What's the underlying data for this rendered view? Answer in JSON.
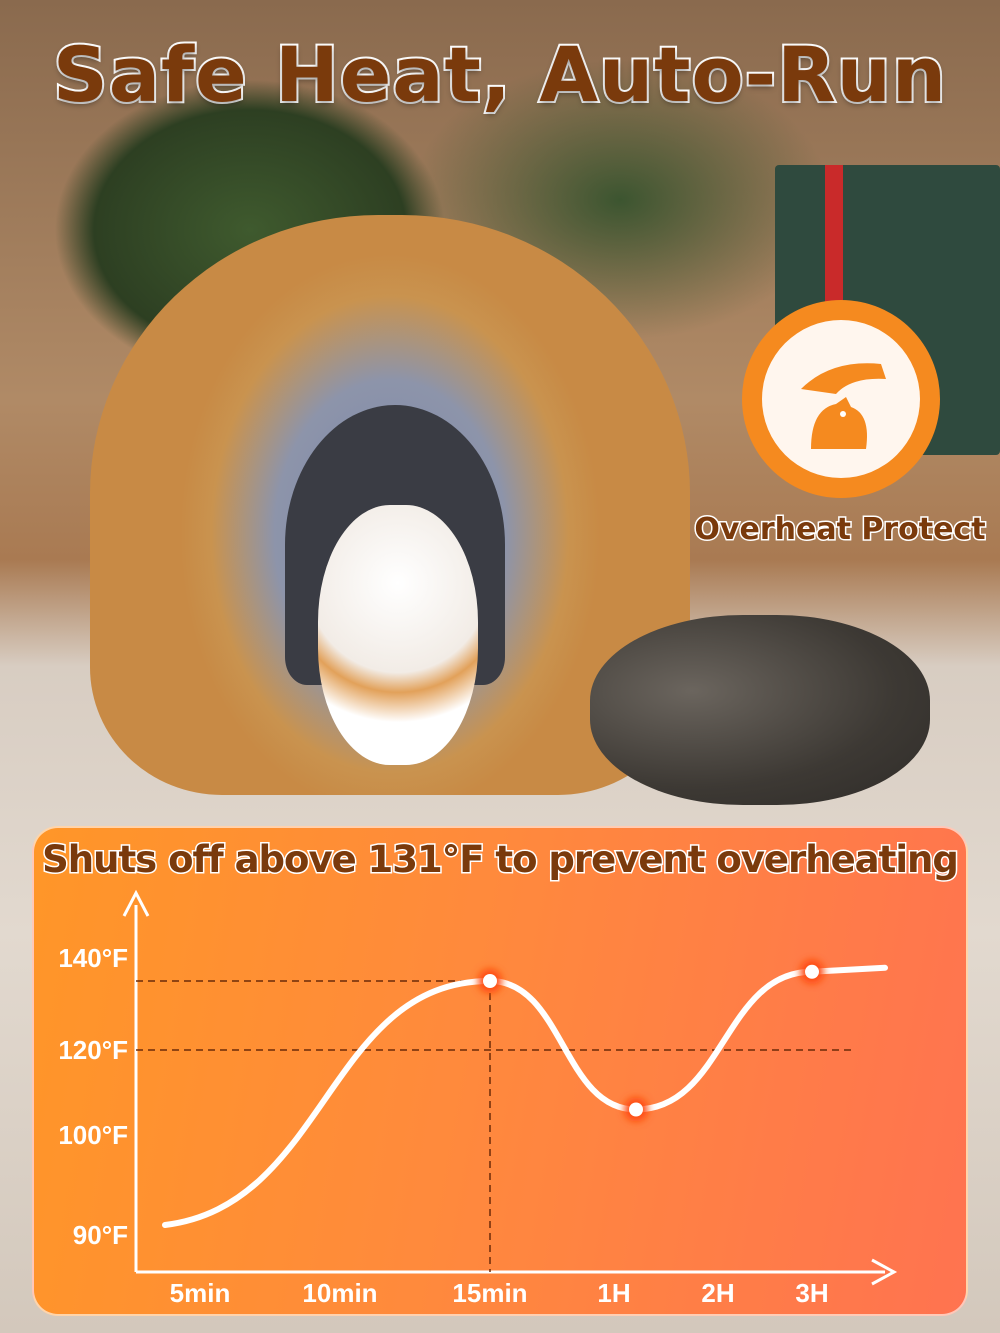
{
  "headline": "Safe Heat, Auto-Run",
  "badge": {
    "label": "Overheat Protect",
    "icon": "hand-over-pet-icon",
    "color": "#f58a1f"
  },
  "colors": {
    "panel_start": "#ff9628",
    "panel_end": "#ff7350",
    "title_text": "#7a3a0c"
  },
  "chart_data": {
    "type": "line",
    "title": "Shuts off above 131°F to prevent overheating",
    "xlabel": "",
    "ylabel": "",
    "categories": [
      "5min",
      "10min",
      "15min",
      "1H",
      "2H",
      "3H"
    ],
    "y_ticks": [
      {
        "value": 90,
        "label": "90°F"
      },
      {
        "value": 100,
        "label": "100°F"
      },
      {
        "value": 120,
        "label": "120°F"
      },
      {
        "value": 140,
        "label": "140°F"
      }
    ],
    "series": [
      {
        "points": [
          {
            "x": "before 5min",
            "y": 91
          },
          {
            "x": "15min",
            "y": 135
          },
          {
            "x": "after 1H",
            "y": 106
          },
          {
            "x": "3H",
            "y": 137
          }
        ]
      }
    ],
    "reference_lines": [
      {
        "axis": "y",
        "value": 135
      },
      {
        "axis": "y",
        "value": 120
      },
      {
        "axis": "x",
        "value": "15min"
      }
    ],
    "highlighted_points": [
      "15min",
      "after 1H",
      "3H"
    ],
    "grid": false,
    "line_color": "#ffffff"
  }
}
